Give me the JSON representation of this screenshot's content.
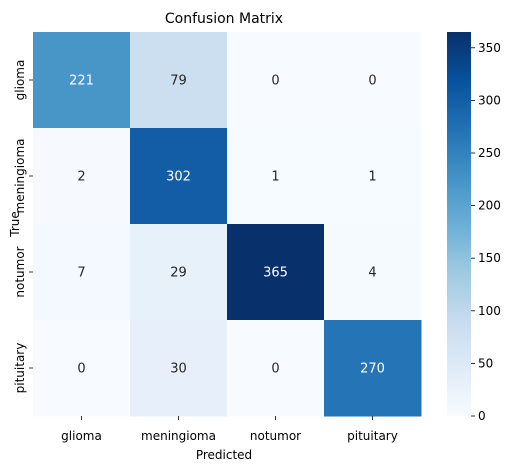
{
  "chart_data": {
    "type": "heatmap",
    "title": "Confusion Matrix",
    "xlabel": "Predicted",
    "ylabel": "True",
    "x_categories": [
      "glioma",
      "meningioma",
      "notumor",
      "pituitary"
    ],
    "y_categories": [
      "glioma",
      "meningioma",
      "notumor",
      "pituitary"
    ],
    "values": [
      [
        221,
        79,
        0,
        0
      ],
      [
        2,
        302,
        1,
        1
      ],
      [
        7,
        29,
        365,
        4
      ],
      [
        0,
        30,
        0,
        270
      ]
    ],
    "colormap": "Blues",
    "colorbar_range": [
      0,
      365
    ],
    "colorbar_ticks": [
      0,
      50,
      100,
      150,
      200,
      250,
      300,
      350
    ]
  }
}
